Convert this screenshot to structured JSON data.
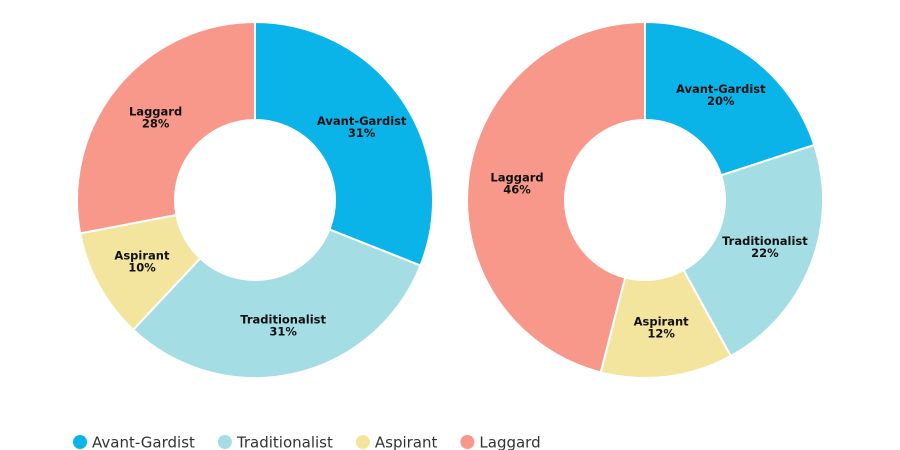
{
  "chart_data": [
    {
      "type": "donut",
      "categories": [
        "Avant-Gardist",
        "Traditionalist",
        "Aspirant",
        "Laggard"
      ],
      "values": [
        31,
        31,
        10,
        28
      ],
      "value_labels": [
        "31%",
        "31%",
        "10%",
        "28%"
      ],
      "colors": [
        "#0bb4e8",
        "#a4dde3",
        "#f3e49e",
        "#f7988a"
      ]
    },
    {
      "type": "donut",
      "categories": [
        "Avant-Gardist",
        "Traditionalist",
        "Aspirant",
        "Laggard"
      ],
      "values": [
        20,
        22,
        12,
        46
      ],
      "value_labels": [
        "20%",
        "22%",
        "12%",
        "46%"
      ],
      "colors": [
        "#0bb4e8",
        "#a4dde3",
        "#f3e49e",
        "#f7988a"
      ]
    }
  ]
}
